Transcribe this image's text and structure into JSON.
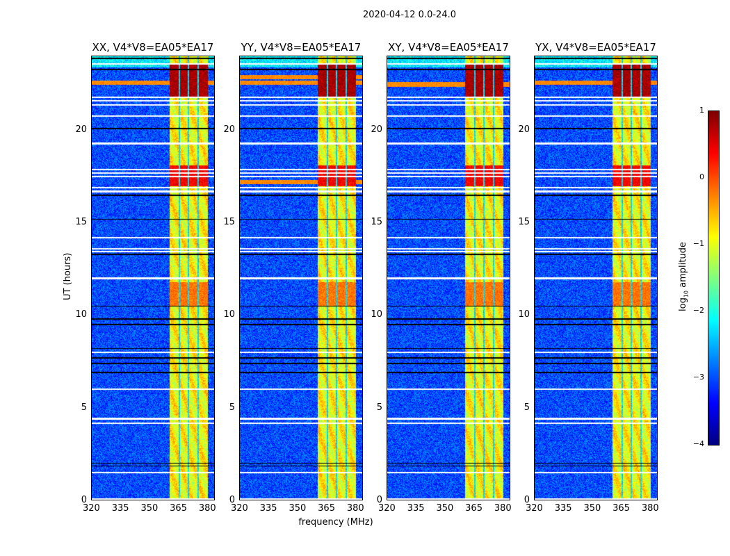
{
  "chart_data": {
    "type": "heatmap",
    "suptitle": "2020-04-12 0.0-24.0",
    "panels": [
      {
        "title": "XX, V4*V8=EA05*EA17",
        "rfi_lines_ut": [
          22.6
        ]
      },
      {
        "title": "YY, V4*V8=EA05*EA17",
        "rfi_lines_ut": [
          22.6,
          22.9,
          17.2
        ]
      },
      {
        "title": "XY, V4*V8=EA05*EA17",
        "rfi_lines_ut": [
          22.5
        ]
      },
      {
        "title": "YX, V4*V8=EA05*EA17",
        "rfi_lines_ut": [
          22.6
        ]
      }
    ],
    "xlabel": "frequency (MHz)",
    "ylabel": "UT (hours)",
    "xlim": [
      320,
      384
    ],
    "ylim": [
      0,
      24
    ],
    "xticks": [
      "320",
      "335",
      "350",
      "365",
      "380"
    ],
    "yticks": [
      "0",
      "5",
      "10",
      "15",
      "20"
    ],
    "colorbar": {
      "label": "log10 amplitude",
      "label_main": "log",
      "label_sub": "10",
      "label_rest": " amplitude",
      "range": [
        -4,
        1
      ],
      "ticks": [
        "1",
        "0",
        "−1",
        "−2",
        "−3",
        "−4"
      ],
      "colormap": "jet"
    },
    "background_level": -3,
    "band_range_mhz": [
      360.7,
      380.4
    ],
    "band_gaps_mhz": [
      365.5,
      370.5,
      375.5
    ],
    "band_level": -1,
    "strong_rfi_ut_ranges": [
      [
        21.8,
        23.6,
        0.8
      ],
      [
        17.0,
        18.1,
        0.4
      ],
      [
        10.5,
        11.8,
        -0.2
      ]
    ],
    "flagged_white_ut": [
      23.6,
      21.4,
      21.6,
      21.8,
      20.8,
      19.3,
      17.9,
      17.7,
      17.5,
      16.9,
      16.7,
      14.2,
      13.6,
      13.45,
      12.0,
      8.0,
      6.0,
      4.4,
      4.15,
      1.5,
      0.05
    ],
    "flagged_black_ut": [
      23.9,
      23.3,
      20.1,
      16.5,
      15.2,
      13.3,
      10.5,
      9.8,
      9.5,
      8.2,
      7.7,
      7.4,
      6.9,
      2.0,
      1.85
    ]
  }
}
